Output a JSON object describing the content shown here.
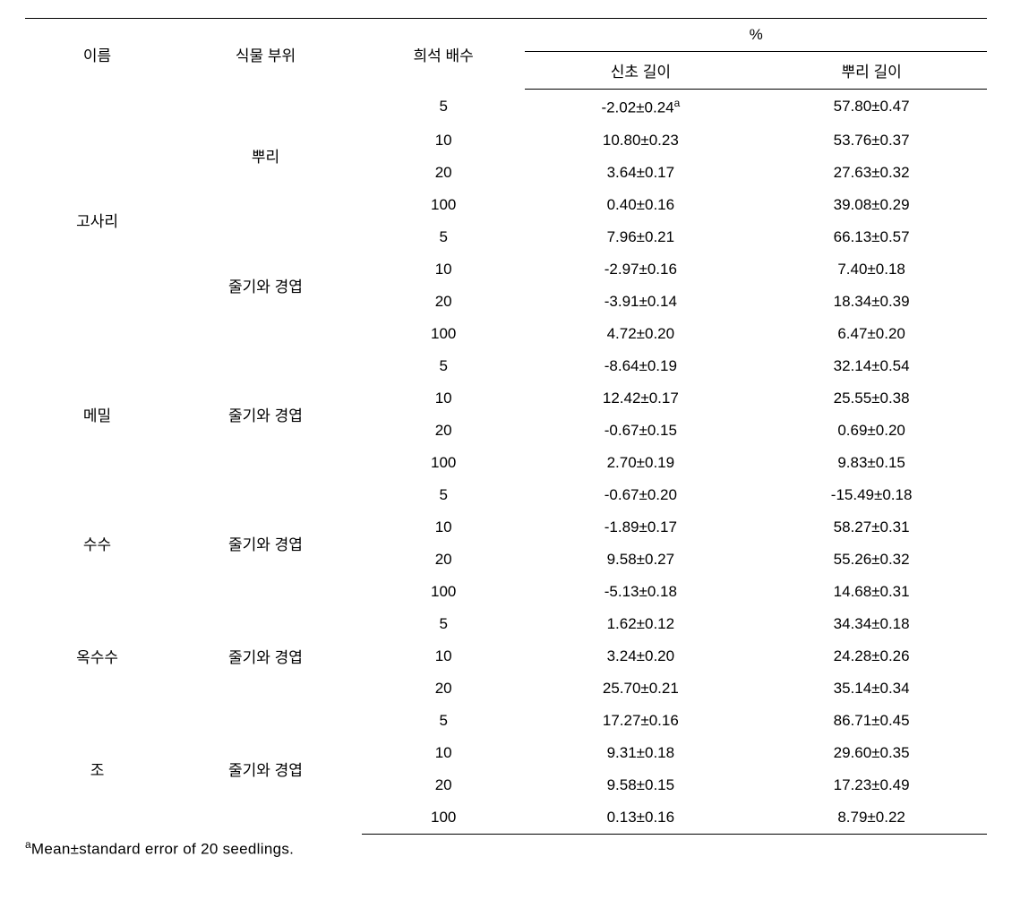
{
  "header": {
    "name": "이름",
    "plant_part": "식물 부위",
    "dilution": "희석 배수",
    "pct": "%",
    "shoot": "신초 길이",
    "root": "뿌리 길이"
  },
  "groups": [
    {
      "name": "고사리",
      "parts": [
        {
          "label": "뿌리",
          "rows": [
            {
              "d": "5",
              "s": "-2.02±0.24",
              "s_sup": "a",
              "r": "57.80±0.47"
            },
            {
              "d": "10",
              "s": "10.80±0.23",
              "r": "53.76±0.37"
            },
            {
              "d": "20",
              "s": "3.64±0.17",
              "r": "27.63±0.32"
            },
            {
              "d": "100",
              "s": "0.40±0.16",
              "r": "39.08±0.29"
            }
          ]
        },
        {
          "label": "줄기와 경엽",
          "rows": [
            {
              "d": "5",
              "s": "7.96±0.21",
              "r": "66.13±0.57"
            },
            {
              "d": "10",
              "s": "-2.97±0.16",
              "r": "7.40±0.18"
            },
            {
              "d": "20",
              "s": "-3.91±0.14",
              "r": "18.34±0.39"
            },
            {
              "d": "100",
              "s": "4.72±0.20",
              "r": "6.47±0.20"
            }
          ]
        }
      ]
    },
    {
      "name": "메밀",
      "parts": [
        {
          "label": "줄기와 경엽",
          "rows": [
            {
              "d": "5",
              "s": "-8.64±0.19",
              "r": "32.14±0.54"
            },
            {
              "d": "10",
              "s": "12.42±0.17",
              "r": "25.55±0.38"
            },
            {
              "d": "20",
              "s": "-0.67±0.15",
              "r": "0.69±0.20"
            },
            {
              "d": "100",
              "s": "2.70±0.19",
              "r": "9.83±0.15"
            }
          ]
        }
      ]
    },
    {
      "name": "수수",
      "parts": [
        {
          "label": "줄기와 경엽",
          "rows": [
            {
              "d": "5",
              "s": "-0.67±0.20",
              "r": "-15.49±0.18"
            },
            {
              "d": "10",
              "s": "-1.89±0.17",
              "r": "58.27±0.31"
            },
            {
              "d": "20",
              "s": "9.58±0.27",
              "r": "55.26±0.32"
            },
            {
              "d": "100",
              "s": "-5.13±0.18",
              "r": "14.68±0.31"
            }
          ]
        }
      ]
    },
    {
      "name": "옥수수",
      "parts": [
        {
          "label": "줄기와 경엽",
          "rows": [
            {
              "d": "5",
              "s": "1.62±0.12",
              "r": "34.34±0.18"
            },
            {
              "d": "10",
              "s": "3.24±0.20",
              "r": "24.28±0.26"
            },
            {
              "d": "20",
              "s": "25.70±0.21",
              "r": "35.14±0.34"
            }
          ]
        }
      ]
    },
    {
      "name": "조",
      "parts": [
        {
          "label": "줄기와 경엽",
          "rows": [
            {
              "d": "5",
              "s": "17.27±0.16",
              "r": "86.71±0.45"
            },
            {
              "d": "10",
              "s": "9.31±0.18",
              "r": "29.60±0.35"
            },
            {
              "d": "20",
              "s": "9.58±0.15",
              "r": "17.23±0.49"
            },
            {
              "d": "100",
              "s": "0.13±0.16",
              "r": "8.79±0.22"
            }
          ]
        }
      ]
    }
  ],
  "footnote_sup": "a",
  "footnote_text": "Mean±standard error of 20 seedlings."
}
